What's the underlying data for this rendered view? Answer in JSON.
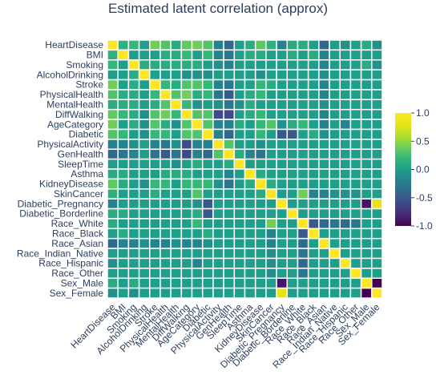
{
  "chart_data": {
    "type": "heatmap",
    "title": "Estimated latent correlation (approx)",
    "variables": [
      "HeartDisease",
      "BMI",
      "Smoking",
      "AlcoholDrinking",
      "Stroke",
      "PhysicalHealth",
      "MentalHealth",
      "DiffWalking",
      "AgeCategory",
      "Diabetic",
      "PhysicalActivity",
      "GenHealth",
      "SleepTime",
      "Asthma",
      "KidneyDisease",
      "SkinCancer",
      "Diabetic_Pregnancy",
      "Diabetic_Borderline",
      "Race_White",
      "Race_Black",
      "Race_Asian",
      "Race_Indian_Native",
      "Race_Hispanic",
      "Race_Other",
      "Sex_Male",
      "Sex_Female"
    ],
    "zmin": -1,
    "zmax": 1,
    "colorbar_ticks": [
      1.0,
      0.5,
      0.0,
      -0.5,
      -1.0
    ],
    "colorbar_tick_labels": [
      "1.0",
      "0.5",
      "0.0",
      "-0.5",
      "-1.0"
    ],
    "colorscale": "viridis",
    "values": [
      [
        1.0,
        0.15,
        0.2,
        0.0,
        0.4,
        0.3,
        0.1,
        0.35,
        0.4,
        0.3,
        -0.2,
        -0.4,
        0.0,
        0.1,
        0.35,
        0.15,
        -0.2,
        0.1,
        0.1,
        0.0,
        -0.4,
        0.0,
        -0.1,
        0.0,
        0.1,
        -0.1
      ],
      [
        0.15,
        1.0,
        0.0,
        0.0,
        0.0,
        0.1,
        0.1,
        0.2,
        0.0,
        0.2,
        -0.2,
        -0.3,
        0.0,
        0.1,
        0.1,
        0.0,
        0.0,
        0.1,
        0.0,
        0.1,
        -0.2,
        0.0,
        0.0,
        0.0,
        0.0,
        0.0
      ],
      [
        0.2,
        0.0,
        1.0,
        0.1,
        0.1,
        0.1,
        0.1,
        0.1,
        0.1,
        0.0,
        -0.1,
        -0.2,
        0.0,
        0.0,
        0.0,
        0.0,
        0.0,
        0.0,
        0.0,
        0.0,
        -0.2,
        0.0,
        0.0,
        0.0,
        0.1,
        -0.1
      ],
      [
        0.0,
        0.0,
        0.1,
        1.0,
        0.0,
        0.0,
        0.0,
        -0.1,
        -0.1,
        -0.1,
        0.0,
        0.0,
        0.0,
        0.0,
        -0.1,
        0.0,
        0.0,
        0.0,
        0.0,
        0.0,
        -0.1,
        0.0,
        0.0,
        0.0,
        0.0,
        0.0
      ],
      [
        0.4,
        0.0,
        0.1,
        0.0,
        1.0,
        0.2,
        0.1,
        0.3,
        0.3,
        0.2,
        -0.2,
        -0.3,
        0.0,
        0.0,
        0.2,
        0.1,
        0.0,
        0.0,
        0.0,
        0.0,
        -0.2,
        0.0,
        0.0,
        0.0,
        0.0,
        0.0
      ],
      [
        0.3,
        0.1,
        0.1,
        0.0,
        0.2,
        1.0,
        0.3,
        0.4,
        0.1,
        0.2,
        -0.3,
        -0.5,
        0.0,
        0.1,
        0.2,
        0.0,
        0.0,
        0.0,
        0.0,
        0.0,
        -0.2,
        0.0,
        0.0,
        0.0,
        0.0,
        0.0
      ],
      [
        0.1,
        0.1,
        0.1,
        0.0,
        0.1,
        0.3,
        1.0,
        0.2,
        -0.1,
        0.0,
        -0.1,
        -0.3,
        -0.1,
        0.1,
        0.0,
        0.0,
        0.0,
        0.0,
        0.0,
        0.0,
        -0.1,
        0.0,
        0.0,
        0.0,
        0.0,
        0.0
      ],
      [
        0.35,
        0.2,
        0.1,
        -0.1,
        0.3,
        0.4,
        0.2,
        1.0,
        0.3,
        0.3,
        -0.6,
        -0.6,
        0.0,
        0.1,
        0.2,
        0.0,
        0.0,
        0.0,
        0.0,
        0.0,
        -0.2,
        0.0,
        0.0,
        0.0,
        0.0,
        0.0
      ],
      [
        0.4,
        0.0,
        0.1,
        -0.1,
        0.3,
        0.1,
        -0.1,
        0.3,
        1.0,
        0.3,
        -0.2,
        -0.2,
        0.1,
        0.0,
        0.2,
        0.3,
        -0.1,
        0.1,
        0.2,
        0.0,
        -0.2,
        0.0,
        -0.2,
        0.0,
        0.0,
        0.0
      ],
      [
        0.3,
        0.2,
        0.0,
        -0.1,
        0.2,
        0.2,
        0.0,
        0.3,
        0.3,
        1.0,
        -0.2,
        -0.4,
        0.0,
        0.0,
        0.2,
        0.0,
        -0.5,
        -0.5,
        0.0,
        0.1,
        -0.1,
        0.0,
        0.0,
        0.0,
        0.0,
        0.0
      ],
      [
        -0.2,
        -0.2,
        -0.1,
        0.0,
        -0.2,
        -0.3,
        -0.1,
        -0.6,
        -0.2,
        -0.2,
        1.0,
        0.3,
        0.0,
        0.0,
        -0.1,
        0.0,
        0.0,
        0.0,
        0.0,
        0.0,
        0.0,
        0.0,
        0.0,
        0.0,
        0.0,
        0.0
      ],
      [
        -0.4,
        -0.3,
        -0.2,
        0.0,
        -0.3,
        -0.5,
        -0.3,
        -0.6,
        -0.2,
        -0.4,
        0.3,
        1.0,
        0.1,
        -0.2,
        -0.3,
        0.0,
        0.0,
        0.0,
        0.0,
        0.0,
        0.0,
        0.0,
        0.0,
        0.0,
        0.0,
        0.0
      ],
      [
        0.0,
        0.0,
        0.0,
        0.0,
        0.0,
        0.0,
        -0.1,
        0.0,
        0.1,
        0.0,
        0.0,
        0.1,
        1.0,
        0.0,
        0.0,
        0.0,
        0.0,
        0.0,
        0.0,
        0.0,
        0.0,
        0.0,
        0.0,
        0.0,
        0.0,
        0.0
      ],
      [
        0.1,
        0.1,
        0.0,
        0.0,
        0.0,
        0.1,
        0.1,
        0.1,
        0.0,
        0.0,
        0.0,
        -0.2,
        0.0,
        1.0,
        0.1,
        0.0,
        0.0,
        0.0,
        0.0,
        0.0,
        0.0,
        0.0,
        0.0,
        0.0,
        0.0,
        0.0
      ],
      [
        0.35,
        0.1,
        0.0,
        -0.1,
        0.2,
        0.2,
        0.0,
        0.2,
        0.2,
        0.2,
        -0.1,
        -0.3,
        0.0,
        0.1,
        1.0,
        0.1,
        0.0,
        0.0,
        0.0,
        0.0,
        0.0,
        0.0,
        0.0,
        0.0,
        0.0,
        0.0
      ],
      [
        0.15,
        0.0,
        0.0,
        0.0,
        0.1,
        0.0,
        0.0,
        0.0,
        0.3,
        0.0,
        0.0,
        0.0,
        0.0,
        0.0,
        0.1,
        1.0,
        0.0,
        0.0,
        0.4,
        -0.2,
        -0.2,
        -0.1,
        -0.1,
        -0.1,
        0.0,
        0.0
      ],
      [
        -0.2,
        0.0,
        0.0,
        0.0,
        0.0,
        0.0,
        0.0,
        0.0,
        -0.1,
        -0.5,
        0.0,
        0.0,
        0.0,
        0.0,
        0.0,
        0.0,
        1.0,
        0.0,
        0.0,
        0.0,
        0.0,
        0.0,
        0.0,
        0.0,
        -0.9,
        0.8
      ],
      [
        0.1,
        0.1,
        0.0,
        0.0,
        0.0,
        0.0,
        0.0,
        0.0,
        0.1,
        -0.5,
        0.0,
        0.0,
        0.0,
        0.0,
        0.0,
        0.0,
        0.0,
        1.0,
        0.0,
        0.0,
        0.0,
        0.0,
        0.0,
        0.0,
        0.0,
        0.0
      ],
      [
        0.1,
        0.0,
        0.0,
        0.0,
        0.0,
        0.0,
        0.0,
        0.0,
        0.2,
        0.0,
        0.0,
        0.0,
        0.0,
        0.0,
        0.0,
        0.4,
        0.0,
        0.0,
        1.0,
        -0.5,
        -0.4,
        -0.3,
        -0.4,
        -0.3,
        0.0,
        0.0
      ],
      [
        0.0,
        0.1,
        0.0,
        0.0,
        0.0,
        0.0,
        0.0,
        0.0,
        0.0,
        0.1,
        0.0,
        0.0,
        0.0,
        0.0,
        0.0,
        -0.2,
        0.0,
        0.0,
        -0.5,
        1.0,
        0.0,
        0.0,
        0.0,
        0.0,
        0.0,
        0.0
      ],
      [
        -0.4,
        -0.2,
        -0.2,
        -0.1,
        -0.2,
        -0.2,
        -0.1,
        -0.2,
        -0.2,
        -0.1,
        0.0,
        0.0,
        0.0,
        0.0,
        0.0,
        -0.2,
        0.0,
        0.0,
        -0.4,
        0.0,
        1.0,
        0.0,
        0.0,
        0.0,
        0.0,
        0.0
      ],
      [
        0.0,
        0.0,
        0.0,
        0.0,
        0.0,
        0.0,
        0.0,
        0.0,
        0.0,
        0.0,
        0.0,
        0.0,
        0.0,
        0.0,
        0.0,
        -0.1,
        0.0,
        0.0,
        -0.3,
        0.0,
        0.0,
        1.0,
        0.0,
        0.0,
        0.0,
        0.0
      ],
      [
        -0.1,
        0.0,
        0.0,
        0.0,
        0.0,
        0.0,
        0.0,
        0.0,
        -0.2,
        0.0,
        0.0,
        0.0,
        0.0,
        0.0,
        0.0,
        -0.1,
        0.0,
        0.0,
        -0.4,
        0.0,
        0.0,
        0.0,
        1.0,
        0.0,
        0.0,
        0.0
      ],
      [
        0.0,
        0.0,
        0.0,
        0.0,
        0.0,
        0.0,
        0.0,
        0.0,
        0.0,
        0.0,
        0.0,
        0.0,
        0.0,
        0.0,
        0.0,
        -0.1,
        0.0,
        0.0,
        -0.3,
        0.0,
        0.0,
        0.0,
        0.0,
        1.0,
        0.0,
        0.0
      ],
      [
        0.1,
        0.0,
        0.1,
        0.0,
        0.0,
        0.0,
        0.0,
        0.0,
        0.0,
        0.0,
        0.0,
        0.0,
        0.0,
        0.0,
        0.0,
        0.0,
        -0.9,
        0.0,
        0.0,
        0.0,
        0.0,
        0.0,
        0.0,
        0.0,
        1.0,
        -1.0
      ],
      [
        -0.1,
        0.0,
        -0.1,
        0.0,
        0.0,
        0.0,
        0.0,
        0.0,
        0.0,
        0.0,
        0.0,
        0.0,
        0.0,
        0.0,
        0.0,
        0.0,
        0.8,
        0.0,
        0.0,
        0.0,
        0.0,
        0.0,
        0.0,
        0.0,
        -1.0,
        1.0
      ]
    ]
  }
}
